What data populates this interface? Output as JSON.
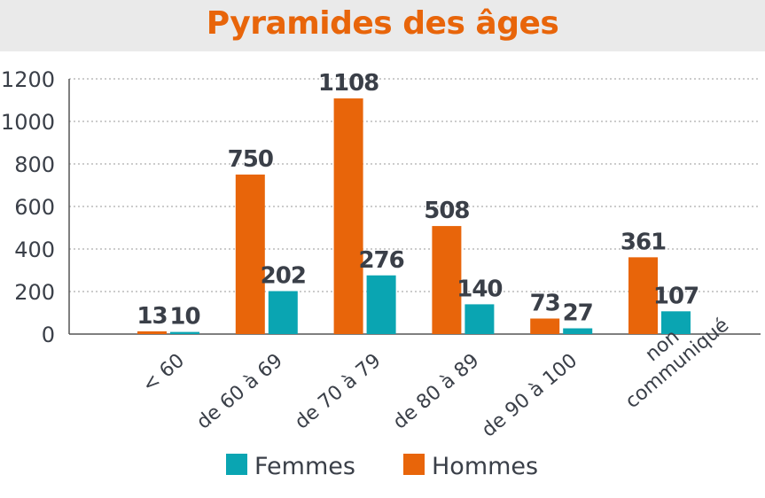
{
  "chart_data": {
    "type": "bar",
    "title": "Pyramides des âges",
    "categories": [
      "< 60",
      "de 60 à 69",
      "de 70 à 79",
      "de 80 à 89",
      "de 90 à 100",
      "non\ncommuniqué"
    ],
    "series": [
      {
        "name": "Hommes",
        "color": "#e8650a",
        "values": [
          13,
          750,
          1108,
          508,
          73,
          361
        ]
      },
      {
        "name": "Femmes",
        "color": "#0aa5b2",
        "values": [
          10,
          202,
          276,
          140,
          27,
          107
        ]
      }
    ],
    "ylim": [
      0,
      1200
    ],
    "yticks": [
      "0",
      "200",
      "400",
      "600",
      "800",
      "1000",
      "1200"
    ],
    "grid": true,
    "legend": {
      "placement": "bottom",
      "order": [
        "Femmes",
        "Hommes"
      ]
    },
    "colors": {
      "title": "#e8650a",
      "text": "#3a3f48",
      "grid": "#9a9a9a",
      "axis": "#555555",
      "title_bg": "#eaeaea"
    }
  }
}
